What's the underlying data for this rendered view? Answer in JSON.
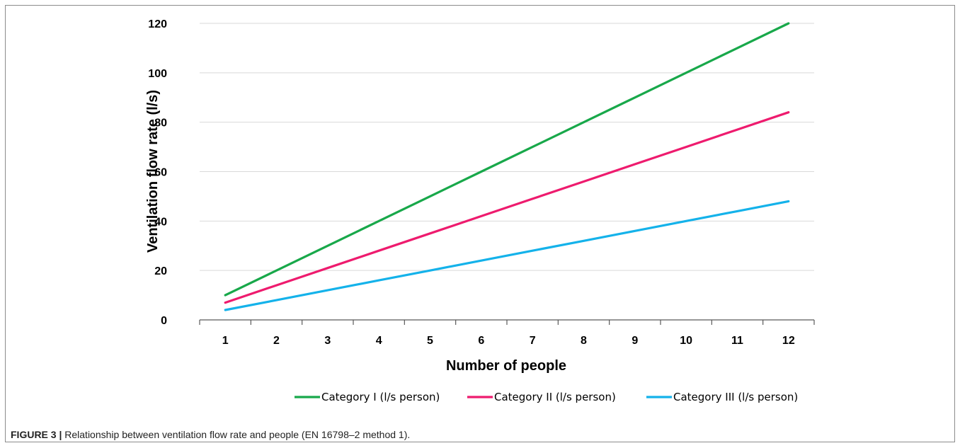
{
  "chart_data": {
    "type": "line",
    "xlabel": "Number of people",
    "ylabel": "Ventilation flow rate (l/s)",
    "x": [
      1,
      2,
      3,
      4,
      5,
      6,
      7,
      8,
      9,
      10,
      11,
      12
    ],
    "ylim": [
      0,
      120
    ],
    "yticks": [
      0,
      20,
      40,
      60,
      80,
      100,
      120
    ],
    "grid": true,
    "legend_position": "bottom",
    "series": [
      {
        "name": "Category I (l/s person)",
        "color": "#18a84a",
        "values": [
          10,
          20,
          30,
          40,
          50,
          60,
          70,
          80,
          90,
          100,
          110,
          120
        ]
      },
      {
        "name": "Category II (l/s person)",
        "color": "#ee1b6e",
        "values": [
          7,
          14,
          21,
          28,
          35,
          42,
          49,
          56,
          63,
          70,
          77,
          84
        ]
      },
      {
        "name": "Category III (l/s person)",
        "color": "#14b2ea",
        "values": [
          4,
          8,
          12,
          16,
          20,
          24,
          28,
          32,
          36,
          40,
          44,
          48
        ]
      }
    ]
  },
  "caption": {
    "label": "FIGURE 3 |",
    "text": "Relationship between ventilation flow rate and people (EN 16798–2 method 1)."
  }
}
